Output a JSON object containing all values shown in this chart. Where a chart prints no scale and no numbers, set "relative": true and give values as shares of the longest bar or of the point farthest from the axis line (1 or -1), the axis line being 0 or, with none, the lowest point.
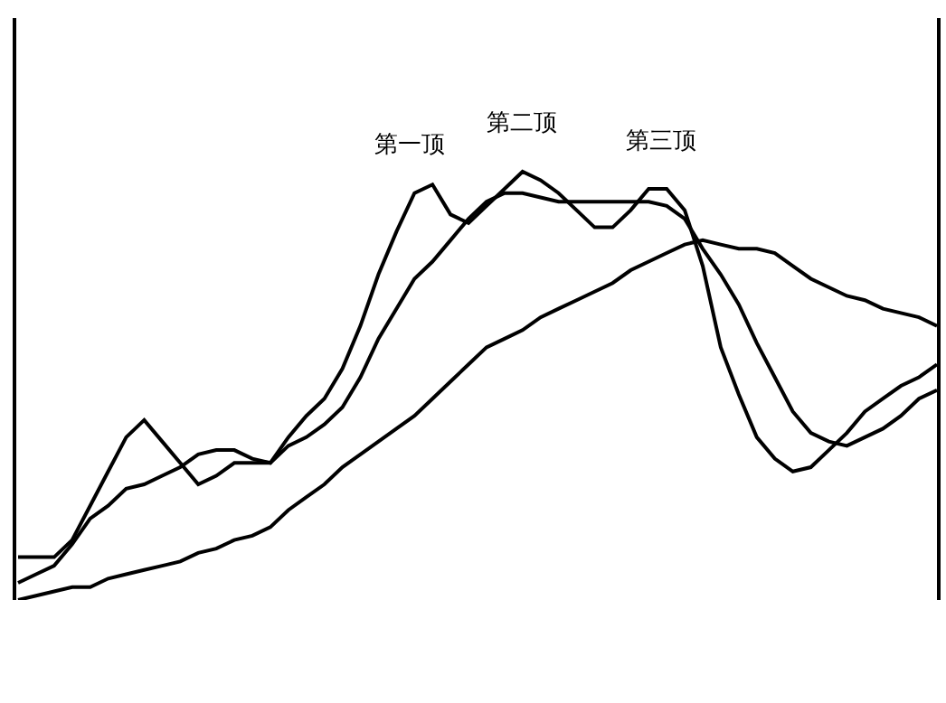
{
  "chart_data": {
    "type": "line",
    "relative": true,
    "categories": [
      null,
      null,
      null,
      null,
      null,
      null,
      null,
      null,
      null,
      null,
      null,
      null,
      null,
      null,
      null,
      null,
      null,
      null,
      null,
      null,
      null,
      null,
      null,
      null,
      null,
      null,
      null,
      null,
      null,
      null,
      null,
      null,
      null,
      null,
      null,
      null,
      null,
      null,
      null,
      null,
      null,
      null,
      null,
      null,
      null,
      null,
      null,
      null,
      null,
      null,
      null,
      null
    ],
    "annotations": [
      "第一顶",
      "第二顶",
      "第三顶"
    ],
    "line_style": "solid",
    "series": [
      {
        "color": "#000000",
        "values": [
          0.1,
          0.1,
          0.1,
          0.14,
          0.22,
          0.3,
          0.38,
          0.42,
          0.37,
          0.32,
          0.27,
          0.29,
          0.32,
          0.32,
          0.32,
          0.38,
          0.43,
          0.47,
          0.54,
          0.64,
          0.76,
          0.86,
          0.95,
          0.97,
          0.9,
          0.88,
          0.92,
          0.96,
          1.0,
          0.98,
          0.95,
          0.91,
          0.87,
          0.87,
          0.91,
          0.96,
          0.96,
          0.91,
          0.78,
          0.59,
          0.48,
          0.38,
          0.33,
          0.3,
          0.31,
          0.35,
          0.39,
          0.44,
          0.47,
          0.5,
          0.52,
          0.55
        ]
      },
      {
        "color": "#000000",
        "values": [
          0.04,
          0.06,
          0.08,
          0.13,
          0.19,
          0.22,
          0.26,
          0.27,
          0.29,
          0.31,
          0.34,
          0.35,
          0.35,
          0.33,
          0.32,
          0.36,
          0.38,
          0.41,
          0.45,
          0.52,
          0.61,
          0.68,
          0.75,
          0.79,
          0.84,
          0.89,
          0.93,
          0.95,
          0.95,
          0.94,
          0.93,
          0.93,
          0.93,
          0.93,
          0.93,
          0.93,
          0.92,
          0.89,
          0.82,
          0.76,
          0.69,
          0.6,
          0.52,
          0.44,
          0.39,
          0.37,
          0.36,
          0.38,
          0.4,
          0.43,
          0.47,
          0.49
        ]
      },
      {
        "color": "#000000",
        "values": [
          0.0,
          0.01,
          0.02,
          0.03,
          0.03,
          0.05,
          0.06,
          0.07,
          0.08,
          0.09,
          0.11,
          0.12,
          0.14,
          0.15,
          0.17,
          0.21,
          0.24,
          0.27,
          0.31,
          0.34,
          0.37,
          0.4,
          0.43,
          0.47,
          0.51,
          0.55,
          0.59,
          0.61,
          0.63,
          0.66,
          0.68,
          0.7,
          0.72,
          0.74,
          0.77,
          0.79,
          0.81,
          0.83,
          0.84,
          0.83,
          0.82,
          0.82,
          0.81,
          0.78,
          0.75,
          0.73,
          0.71,
          0.7,
          0.68,
          0.67,
          0.66,
          0.64
        ]
      }
    ]
  }
}
